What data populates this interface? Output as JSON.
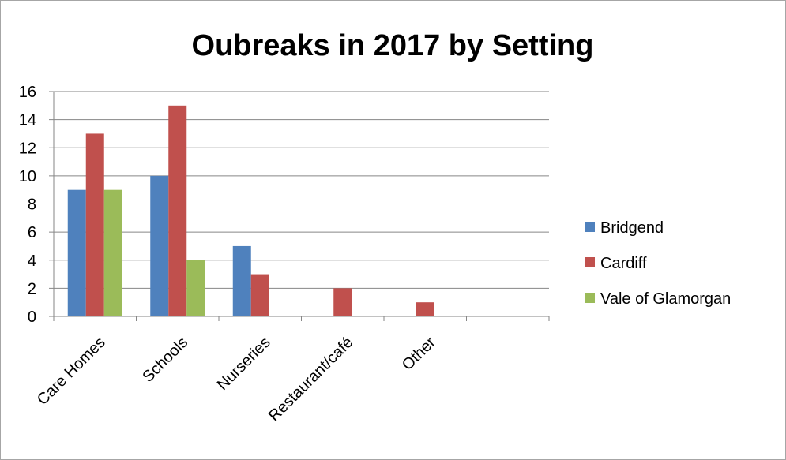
{
  "chart_data": {
    "type": "bar",
    "title": "Oubreaks in 2017 by Setting",
    "xlabel": "",
    "ylabel": "",
    "categories": [
      "Care Homes",
      "Schools",
      "Nurseries",
      "Restaurant/café",
      "Other"
    ],
    "series": [
      {
        "name": "Bridgend",
        "color": "#4f81bd",
        "values": [
          9,
          10,
          5,
          0,
          0
        ]
      },
      {
        "name": "Cardiff",
        "color": "#c0504d",
        "values": [
          13,
          15,
          3,
          2,
          1
        ]
      },
      {
        "name": "Vale of Glamorgan",
        "color": "#9bbb59",
        "values": [
          9,
          4,
          0,
          0,
          0
        ]
      }
    ],
    "ylim": [
      0,
      16
    ],
    "yticks": [
      0,
      2,
      4,
      6,
      8,
      10,
      12,
      14,
      16
    ],
    "grid": true,
    "gridline_color": "#868686",
    "legend_position": "right"
  }
}
